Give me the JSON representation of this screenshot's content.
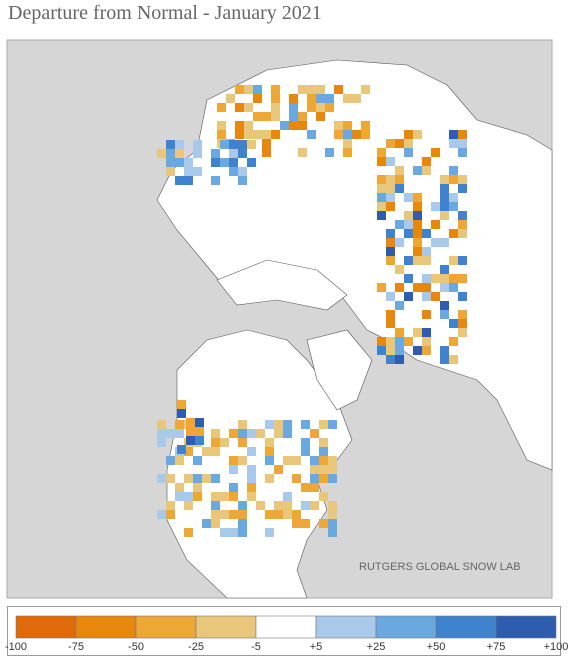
{
  "title": "Departure from Normal - January 2021",
  "map": {
    "credit": "RUTGERS GLOBAL SNOW LAB"
  },
  "legend": {
    "labels": [
      "-100",
      "-75",
      "-50",
      "-25",
      "-5",
      "+5",
      "+25",
      "+50",
      "+75",
      "+100"
    ],
    "colors": [
      "#e06a0a",
      "#e8870e",
      "#eda737",
      "#e9c77a",
      "#ffffff",
      "#a9c9ea",
      "#6aa8e0",
      "#3f83cf",
      "#2e5db0"
    ]
  }
}
